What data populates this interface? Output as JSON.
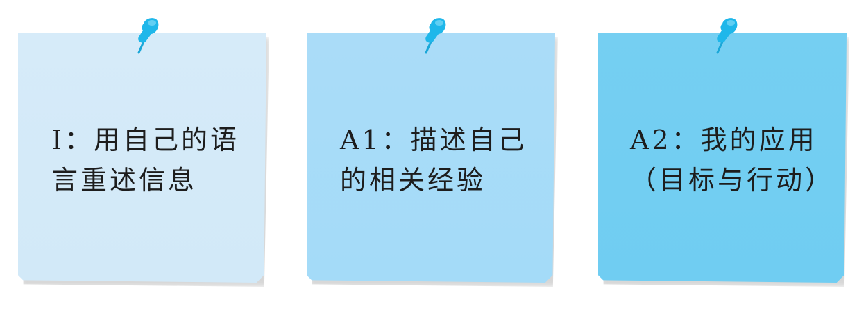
{
  "notes": [
    {
      "lines": [
        "I：用自己的语",
        "言重述信息"
      ]
    },
    {
      "lines": [
        "A1：描述自己",
        "的相关经验"
      ]
    },
    {
      "lines": [
        "A2：我的应用",
        "（目标与行动）"
      ]
    }
  ],
  "colors": {
    "note_1": "#d4eaf8",
    "note_2": "#a8dbf8",
    "note_3": "#73cef2",
    "pin": "#1fb7ea",
    "text": "#1d1d1d"
  },
  "icons": {
    "pin": "pushpin-icon"
  }
}
